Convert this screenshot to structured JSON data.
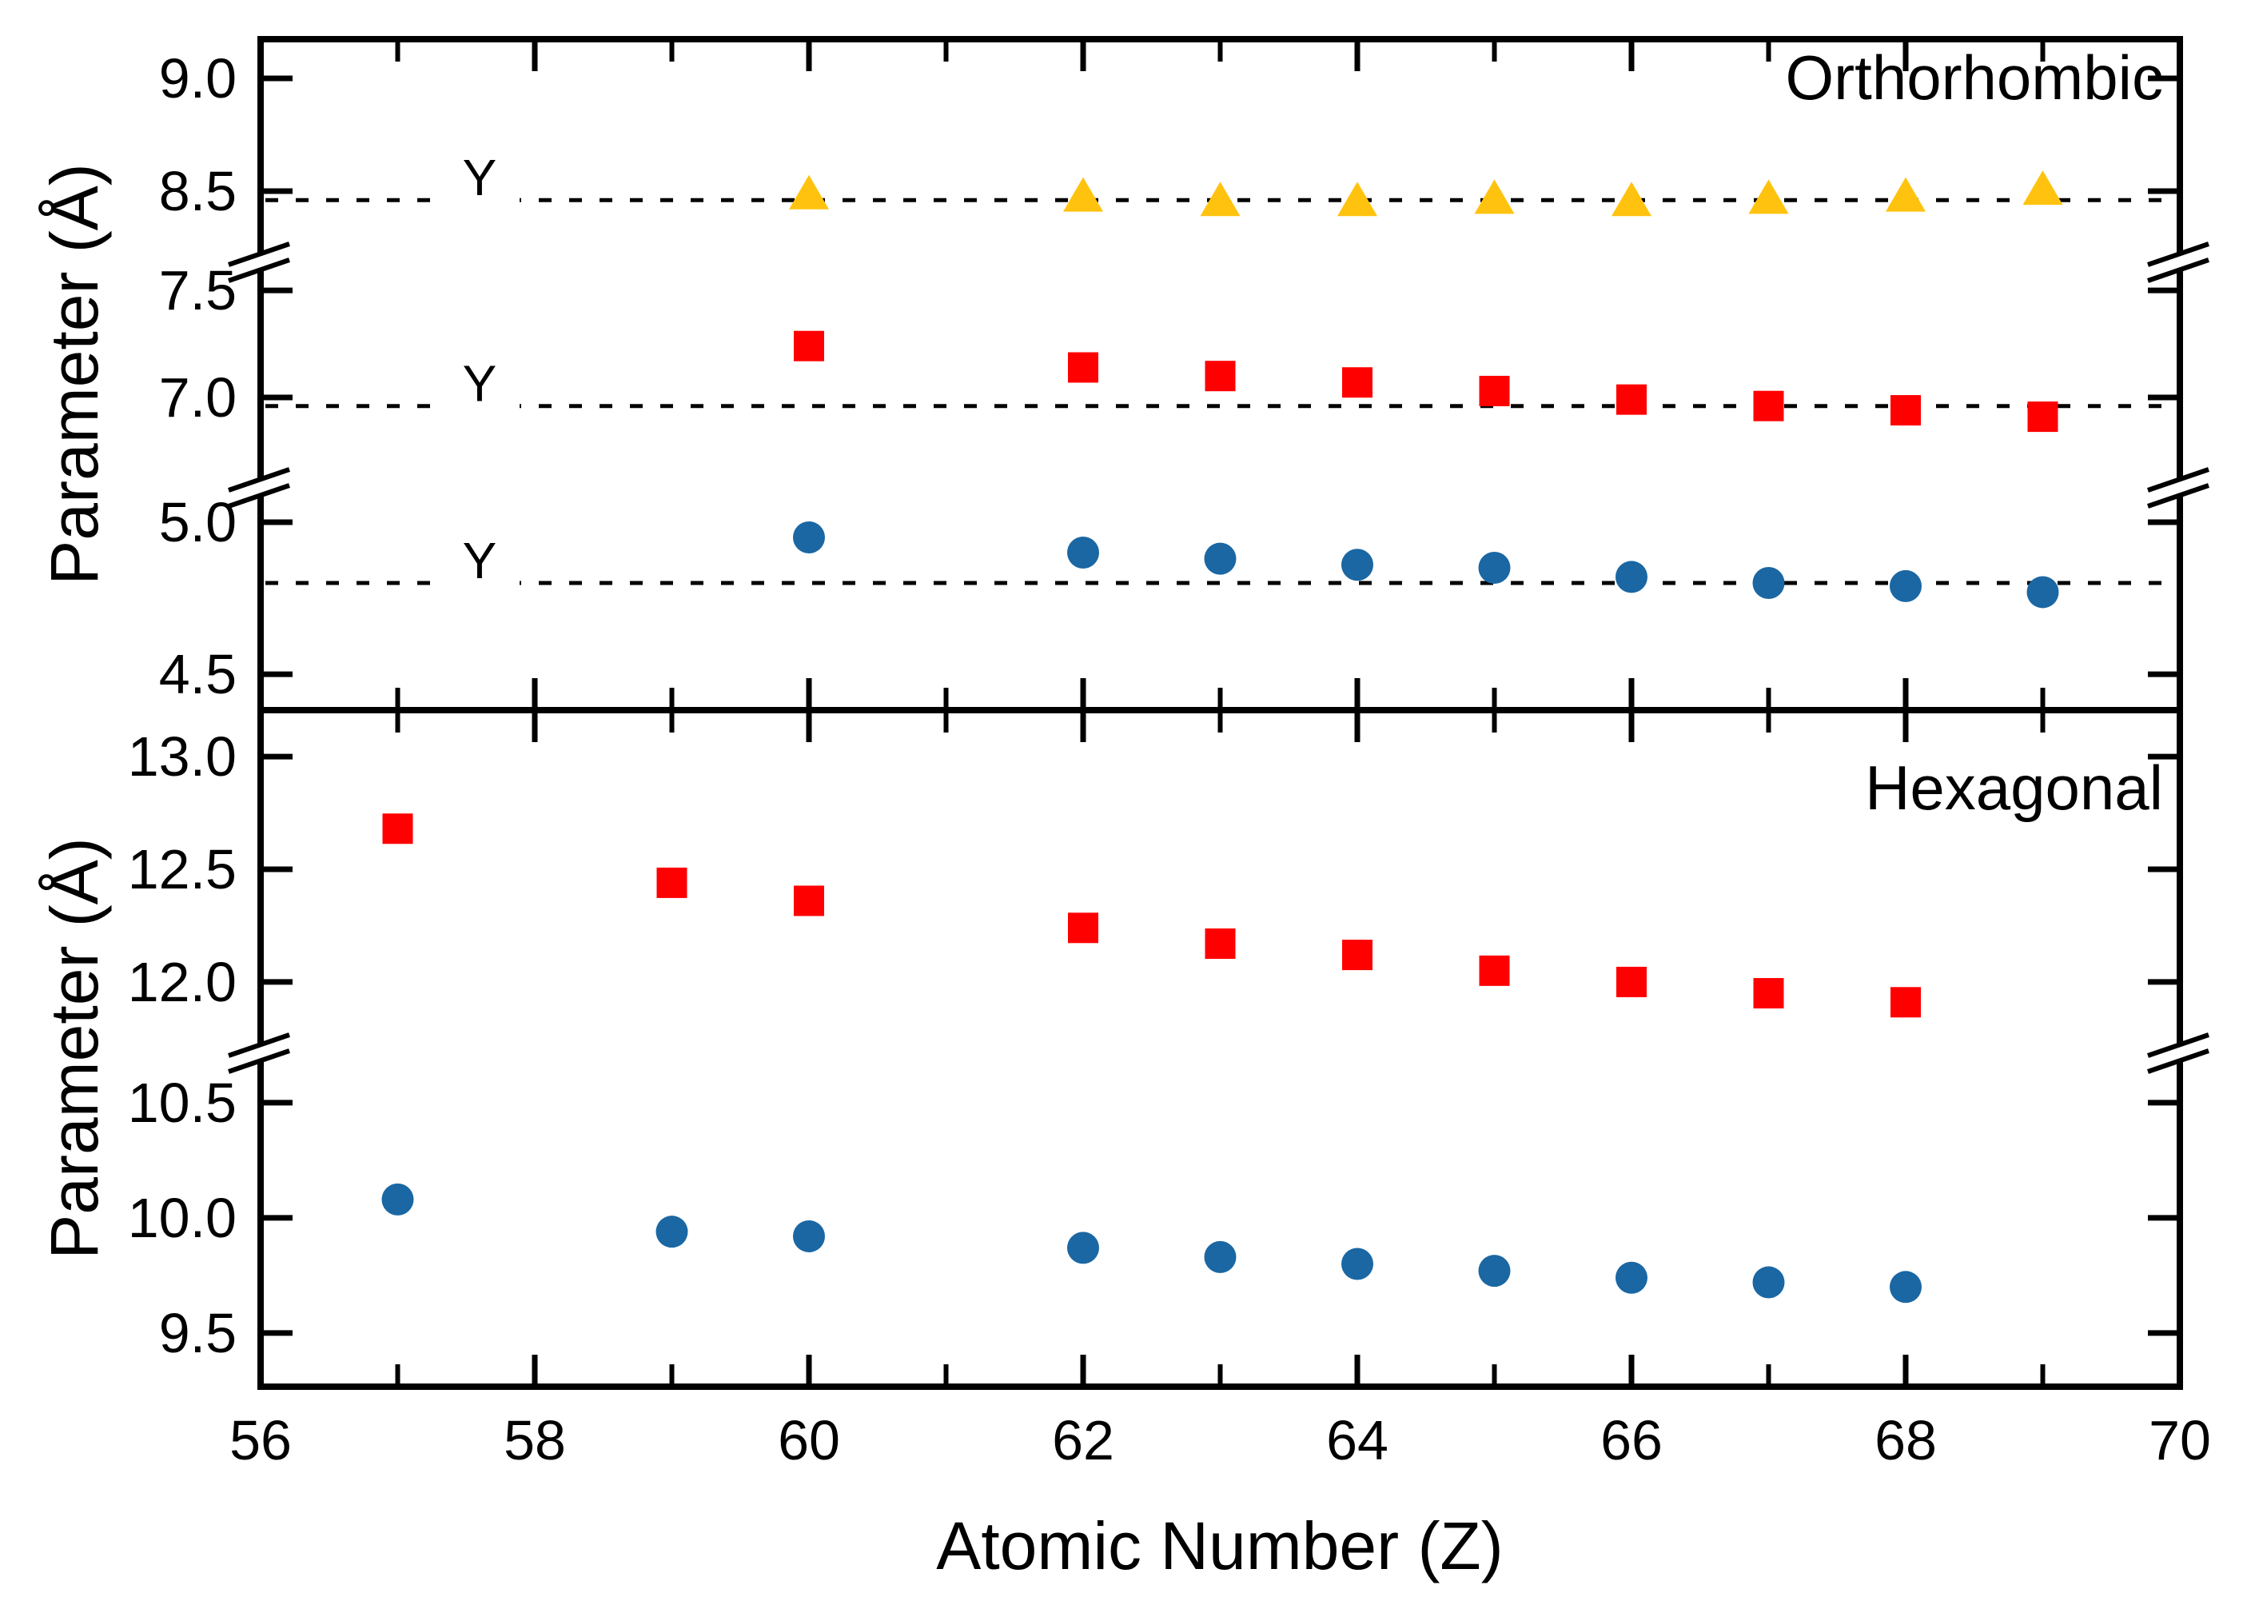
{
  "figure": {
    "x_axis": {
      "label": "Atomic Number (Z)",
      "range": [
        56,
        70
      ],
      "major_ticks": [
        56,
        58,
        60,
        62,
        64,
        66,
        68,
        70
      ],
      "minor_ticks": [
        57,
        59,
        61,
        63,
        65,
        67,
        69
      ]
    },
    "panel_titles": {
      "top": "Orthorhombic",
      "bottom": "Hexagonal"
    },
    "y_label": "Parameter (Å)"
  },
  "colors": {
    "triangle": "#FFC30F",
    "square": "#FF0000",
    "circle": "#1A67A3",
    "axis": "#000000",
    "background": "#FFFFFF"
  },
  "chart_data": [
    {
      "type": "scatter",
      "panel": "orthorhombic",
      "title": "Orthorhombic",
      "xlabel": "Atomic Number (Z)",
      "ylabel": "Parameter (Å)",
      "x_range": [
        56,
        70
      ],
      "x_ticks": [
        56,
        58,
        60,
        62,
        64,
        66,
        68,
        70
      ],
      "y_ticks": [
        9.0,
        8.5,
        7.5,
        7.0,
        5.0,
        4.5
      ],
      "broken_axis_segments": [
        [
          8.18,
          9.17
        ],
        [
          6.58,
          7.63
        ],
        [
          4.38,
          5.11
        ]
      ],
      "grid": false,
      "legend": "none",
      "reference_lines": [
        {
          "label": "Y",
          "value": 8.46
        },
        {
          "label": "Y",
          "value": 6.96
        },
        {
          "label": "Y",
          "value": 4.8
        }
      ],
      "series": [
        {
          "name": "triangle-series",
          "marker": "triangle",
          "color": "#FFC30F",
          "x": [
            60,
            62,
            63,
            64,
            65,
            66,
            67,
            68,
            69
          ],
          "y": [
            8.49,
            8.48,
            8.46,
            8.46,
            8.47,
            8.46,
            8.47,
            8.48,
            8.51
          ]
        },
        {
          "name": "square-series",
          "marker": "square",
          "color": "#FF0000",
          "x": [
            60,
            62,
            63,
            64,
            65,
            66,
            67,
            68,
            69
          ],
          "y": [
            7.24,
            7.14,
            7.1,
            7.07,
            7.03,
            6.99,
            6.96,
            6.94,
            6.91
          ]
        },
        {
          "name": "circle-series",
          "marker": "circle",
          "color": "#1A67A3",
          "x": [
            60,
            62,
            63,
            64,
            65,
            66,
            67,
            68,
            69
          ],
          "y": [
            4.95,
            4.9,
            4.88,
            4.86,
            4.85,
            4.82,
            4.8,
            4.79,
            4.77
          ]
        }
      ]
    },
    {
      "type": "scatter",
      "panel": "hexagonal",
      "title": "Hexagonal",
      "xlabel": "Atomic Number (Z)",
      "ylabel": "Parameter (Å)",
      "x_range": [
        56,
        70
      ],
      "x_ticks": [
        56,
        58,
        60,
        62,
        64,
        66,
        68,
        70
      ],
      "y_ticks": [
        13.0,
        12.5,
        12.0,
        10.5,
        10.0,
        9.5
      ],
      "broken_axis_segments": [
        [
          11.68,
          13.21
        ],
        [
          9.27,
          10.72
        ]
      ],
      "grid": false,
      "legend": "none",
      "reference_lines": [],
      "series": [
        {
          "name": "square-series",
          "marker": "square",
          "color": "#FF0000",
          "x": [
            57,
            59,
            60,
            62,
            63,
            64,
            65,
            66,
            67,
            68
          ],
          "y": [
            12.68,
            12.44,
            12.36,
            12.24,
            12.17,
            12.12,
            12.05,
            12.0,
            11.95,
            11.91
          ]
        },
        {
          "name": "circle-series",
          "marker": "circle",
          "color": "#1A67A3",
          "x": [
            57,
            59,
            60,
            62,
            63,
            64,
            65,
            66,
            67,
            68
          ],
          "y": [
            10.08,
            9.94,
            9.92,
            9.87,
            9.83,
            9.8,
            9.77,
            9.74,
            9.72,
            9.7
          ]
        }
      ]
    }
  ]
}
